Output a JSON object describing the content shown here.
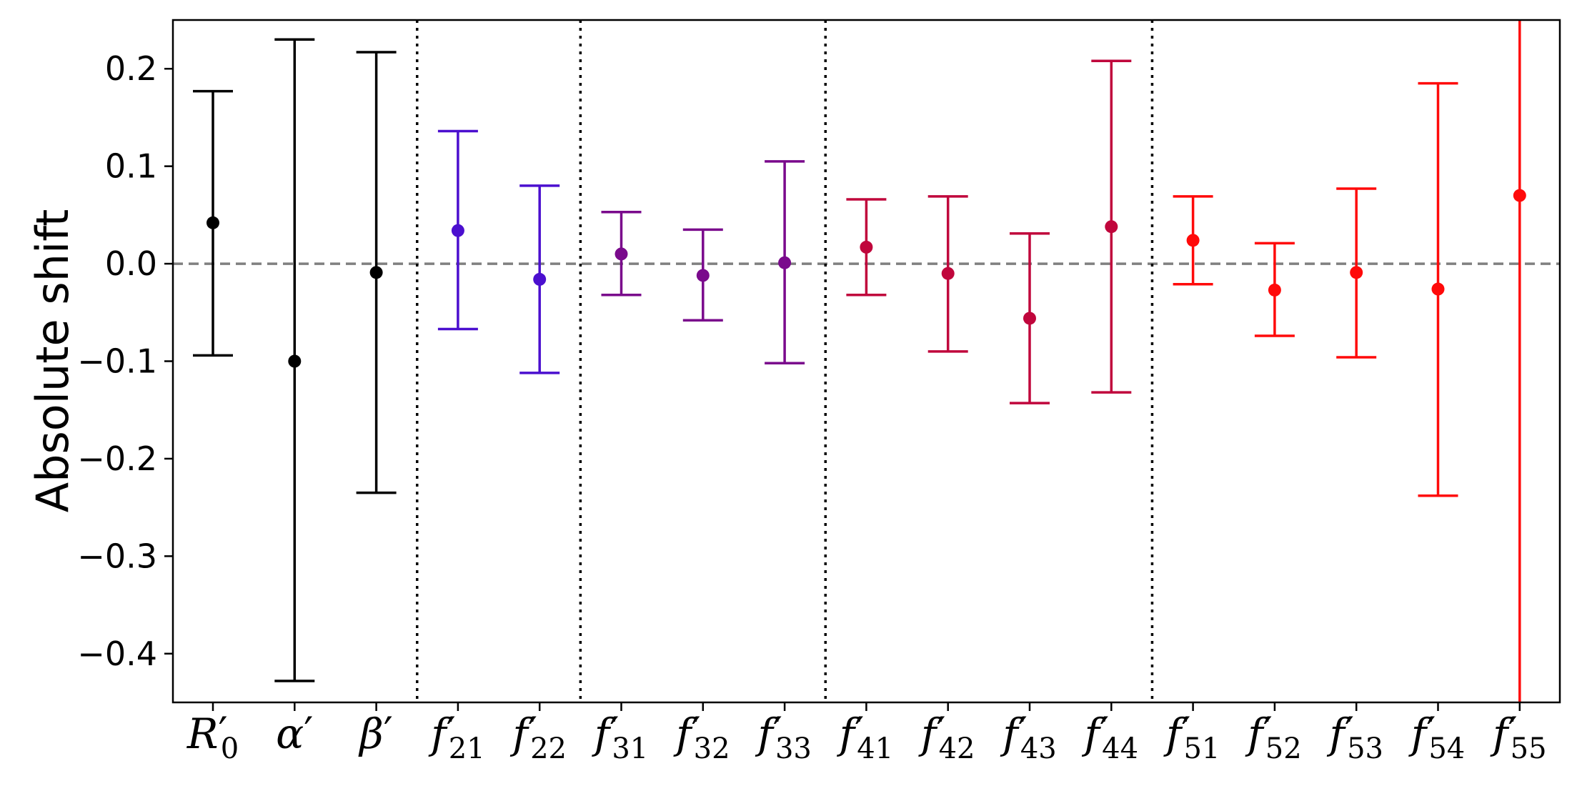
{
  "chart_data": {
    "type": "errorbar",
    "title": "",
    "xlabel": "",
    "ylabel": "Absolute shift",
    "ylim": [
      -0.45,
      0.25
    ],
    "yticks": [
      0.2,
      0.1,
      0.0,
      -0.1,
      -0.2,
      -0.3,
      -0.4
    ],
    "ytick_labels": [
      "0.2",
      "0.1",
      "0.0",
      "−0.1",
      "−0.2",
      "−0.3",
      "−0.4"
    ],
    "reference_line": {
      "y": 0.0,
      "style": "dashed",
      "color": "#808080"
    },
    "group_separators_after_index": [
      2,
      4,
      7,
      11
    ],
    "grid": false,
    "legend": "none",
    "points": [
      {
        "label": "R′0",
        "base": "R",
        "sub": "0",
        "y": 0.042,
        "low": -0.094,
        "high": 0.177,
        "color": "#000000"
      },
      {
        "label": "α′",
        "base": "α",
        "sub": "",
        "y": -0.1,
        "low": -0.428,
        "high": 0.23,
        "color": "#000000"
      },
      {
        "label": "β′",
        "base": "β",
        "sub": "",
        "y": -0.009,
        "low": -0.235,
        "high": 0.217,
        "color": "#000000"
      },
      {
        "label": "f′21",
        "base": "f",
        "sub": "21",
        "y": 0.034,
        "low": -0.067,
        "high": 0.136,
        "color": "#4b0fcf"
      },
      {
        "label": "f′22",
        "base": "f",
        "sub": "22",
        "y": -0.016,
        "low": -0.112,
        "high": 0.08,
        "color": "#4b0fcf"
      },
      {
        "label": "f′31",
        "base": "f",
        "sub": "31",
        "y": 0.01,
        "low": -0.032,
        "high": 0.053,
        "color": "#7a0a8c"
      },
      {
        "label": "f′32",
        "base": "f",
        "sub": "32",
        "y": -0.012,
        "low": -0.058,
        "high": 0.035,
        "color": "#7a0a8c"
      },
      {
        "label": "f′33",
        "base": "f",
        "sub": "33",
        "y": 0.001,
        "low": -0.102,
        "high": 0.105,
        "color": "#7a0a8c"
      },
      {
        "label": "f′41",
        "base": "f",
        "sub": "41",
        "y": 0.017,
        "low": -0.032,
        "high": 0.066,
        "color": "#c0063c"
      },
      {
        "label": "f′42",
        "base": "f",
        "sub": "42",
        "y": -0.01,
        "low": -0.09,
        "high": 0.069,
        "color": "#c0063c"
      },
      {
        "label": "f′43",
        "base": "f",
        "sub": "43",
        "y": -0.056,
        "low": -0.143,
        "high": 0.031,
        "color": "#c0063c"
      },
      {
        "label": "f′44",
        "base": "f",
        "sub": "44",
        "y": 0.038,
        "low": -0.132,
        "high": 0.208,
        "color": "#c0063c"
      },
      {
        "label": "f′51",
        "base": "f",
        "sub": "51",
        "y": 0.024,
        "low": -0.021,
        "high": 0.069,
        "color": "#ff0a0a"
      },
      {
        "label": "f′52",
        "base": "f",
        "sub": "52",
        "y": -0.027,
        "low": -0.074,
        "high": 0.021,
        "color": "#ff0a0a"
      },
      {
        "label": "f′53",
        "base": "f",
        "sub": "53",
        "y": -0.009,
        "low": -0.096,
        "high": 0.077,
        "color": "#ff0a0a"
      },
      {
        "label": "f′54",
        "base": "f",
        "sub": "54",
        "y": -0.026,
        "low": -0.238,
        "high": 0.185,
        "color": "#ff0a0a"
      },
      {
        "label": "f′55",
        "base": "f",
        "sub": "55",
        "y": 0.07,
        "low": -0.45,
        "high": 0.25,
        "color": "#ff0a0a",
        "clipped": true
      }
    ]
  }
}
